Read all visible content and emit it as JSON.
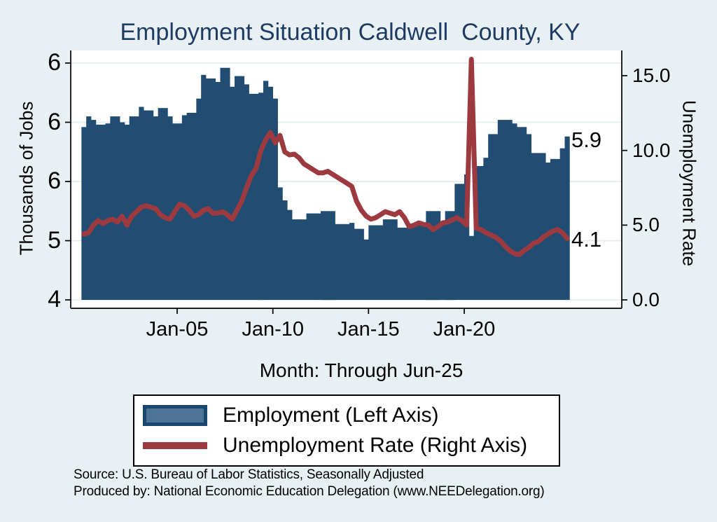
{
  "title": "Employment Situation Caldwell  County, KY",
  "chart_data": {
    "type": "bar",
    "subtype": "dual-axis bar+line time series",
    "x_axis": {
      "label": "Month: Through Jun-25",
      "tick_labels": [
        "Jan-05",
        "Jan-10",
        "Jan-15",
        "Jan-20"
      ],
      "tick_values": [
        2005,
        2010,
        2015,
        2020
      ],
      "start": 2000.0,
      "end": 2025.5,
      "step_years": 0.25
    },
    "left_axis": {
      "title": "Thousands of Jobs",
      "tick_labels": [
        "6",
        "6",
        "6",
        "5",
        "4"
      ],
      "tick_values": [
        6.5,
        6.0,
        5.5,
        5.0,
        4.5
      ],
      "range": [
        4.5,
        6.61
      ],
      "last_value_label": "5.9"
    },
    "right_axis": {
      "title": "Unemployment Rate",
      "tick_labels": [
        "15.0",
        "10.0",
        "5.0",
        "0.0"
      ],
      "tick_values": [
        15,
        10,
        5,
        0
      ],
      "range": [
        0,
        16.7
      ],
      "last_value_label": "4.1"
    },
    "grid": "horizontal-left-ticks",
    "legend_position": "bottom",
    "series": [
      {
        "name": "Employment (Left Axis)",
        "type": "bar",
        "axis": "left",
        "color": "#214d72",
        "values": [
          5.96,
          6.05,
          6.02,
          5.98,
          5.98,
          5.99,
          6.05,
          6.05,
          6.0,
          5.98,
          6.05,
          6.05,
          6.13,
          6.1,
          6.1,
          6.05,
          6.12,
          6.12,
          6.05,
          5.99,
          5.99,
          6.06,
          6.08,
          6.08,
          6.2,
          6.4,
          6.37,
          6.37,
          6.34,
          6.46,
          6.46,
          6.3,
          6.39,
          6.39,
          6.32,
          6.24,
          6.24,
          6.25,
          6.35,
          6.3,
          6.2,
          5.45,
          5.34,
          5.26,
          5.18,
          5.18,
          5.18,
          5.23,
          5.23,
          5.23,
          5.25,
          5.25,
          5.25,
          5.14,
          5.14,
          5.14,
          5.15,
          5.1,
          5.1,
          5.01,
          5.13,
          5.13,
          5.13,
          5.18,
          5.18,
          5.18,
          5.11,
          5.11,
          5.11,
          5.14,
          5.14,
          5.14,
          5.25,
          5.25,
          5.25,
          5.14,
          5.25,
          5.25,
          5.48,
          5.48,
          5.56,
          5.04,
          5.63,
          5.63,
          5.7,
          5.9,
          5.9,
          6.02,
          6.02,
          6.02,
          5.99,
          5.96,
          5.96,
          5.9,
          5.74,
          5.74,
          5.74,
          5.66,
          5.69,
          5.69,
          5.78,
          5.88
        ]
      },
      {
        "name": "Unemployment Rate (Right Axis)",
        "type": "line",
        "axis": "right",
        "color": "#9d3a40",
        "values": [
          4.4,
          4.5,
          5.0,
          5.3,
          5.1,
          5.3,
          5.4,
          5.2,
          5.6,
          5.0,
          5.6,
          5.9,
          6.2,
          6.3,
          6.2,
          6.1,
          5.7,
          5.5,
          5.4,
          5.9,
          6.4,
          6.3,
          6.0,
          5.6,
          5.7,
          6.0,
          6.1,
          5.8,
          5.8,
          5.9,
          5.7,
          5.4,
          6.0,
          6.6,
          7.5,
          8.3,
          8.8,
          10.0,
          10.7,
          11.2,
          10.5,
          11.0,
          9.9,
          9.7,
          9.75,
          9.5,
          9.1,
          8.9,
          8.7,
          8.5,
          8.5,
          8.6,
          8.4,
          8.2,
          8.0,
          7.8,
          7.6,
          6.6,
          6.0,
          5.6,
          5.4,
          5.5,
          5.7,
          5.9,
          5.8,
          5.7,
          5.9,
          5.5,
          4.9,
          5.0,
          5.15,
          5.05,
          5.0,
          4.7,
          4.9,
          5.15,
          5.2,
          5.35,
          5.5,
          5.3,
          5.0,
          16.1,
          4.8,
          4.7,
          4.5,
          4.35,
          4.2,
          3.97,
          3.6,
          3.3,
          3.1,
          3.03,
          3.3,
          3.5,
          3.8,
          3.9,
          4.2,
          4.4,
          4.6,
          4.7,
          4.5,
          4.1
        ]
      }
    ]
  },
  "legend": {
    "items": [
      {
        "label": "Employment (Left Axis)",
        "swatch": "bar"
      },
      {
        "label": "Unemployment Rate (Right Axis)",
        "swatch": "line"
      }
    ]
  },
  "footer": {
    "source_line1": "Source: U.S. Bureau of Labor Statistics, Seasonally Adjusted",
    "source_line2": "Produced by: National Economic Education Delegation (www.NEEDelegation.org)"
  },
  "colors": {
    "background": "#e9f0f3",
    "plot_background": "#ffffff",
    "gridline": "#e3ecef",
    "bar": "#214d72",
    "line": "#9d3a40",
    "title": "#1e3c63",
    "axis": "#000000",
    "legend_swatch_fill": "#4f7297",
    "legend_swatch_border": "#1a476f"
  }
}
